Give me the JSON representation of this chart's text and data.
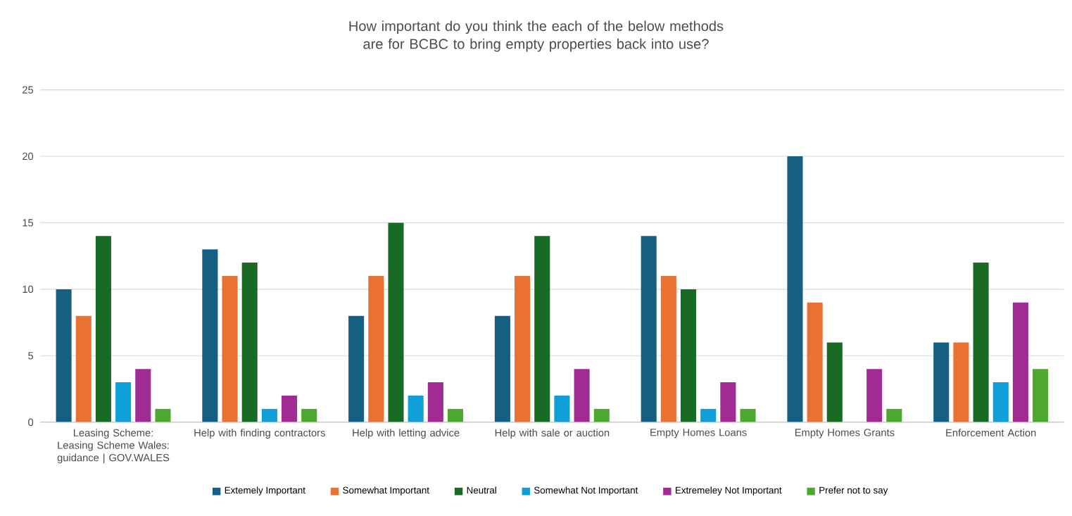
{
  "chart_data": {
    "type": "bar",
    "title": "How important do you think the each of the below methods are for BCBC to bring empty properties back into use?",
    "categories": [
      "Leasing Scheme: Leasing Scheme Wales: guidance | GOV.WALES",
      "Help with finding contractors",
      "Help with letting advice",
      "Help with sale or auction",
      "Empty Homes Loans",
      "Empty Homes Grants",
      "Enforcement Action"
    ],
    "series": [
      {
        "name": "Extemely Important",
        "color": "#156082",
        "values": [
          10,
          13,
          8,
          8,
          14,
          20,
          6
        ]
      },
      {
        "name": "Somewhat Important",
        "color": "#e97132",
        "values": [
          8,
          11,
          11,
          11,
          11,
          9,
          6
        ]
      },
      {
        "name": "Neutral",
        "color": "#196b24",
        "values": [
          14,
          12,
          15,
          14,
          10,
          6,
          12
        ]
      },
      {
        "name": "Somewhat Not Important",
        "color": "#0f9ed5",
        "values": [
          3,
          1,
          2,
          2,
          1,
          null,
          3
        ]
      },
      {
        "name": "Extremeley Not Important",
        "color": "#a02b93",
        "values": [
          4,
          2,
          3,
          4,
          3,
          4,
          9
        ]
      },
      {
        "name": "Prefer not to say",
        "color": "#4ea72e",
        "values": [
          1,
          1,
          1,
          1,
          1,
          1,
          4
        ]
      }
    ],
    "ylim": [
      0,
      25
    ],
    "yticks": [
      0,
      5,
      10,
      15,
      20,
      25
    ],
    "grid": "y",
    "legend": "bottom"
  }
}
